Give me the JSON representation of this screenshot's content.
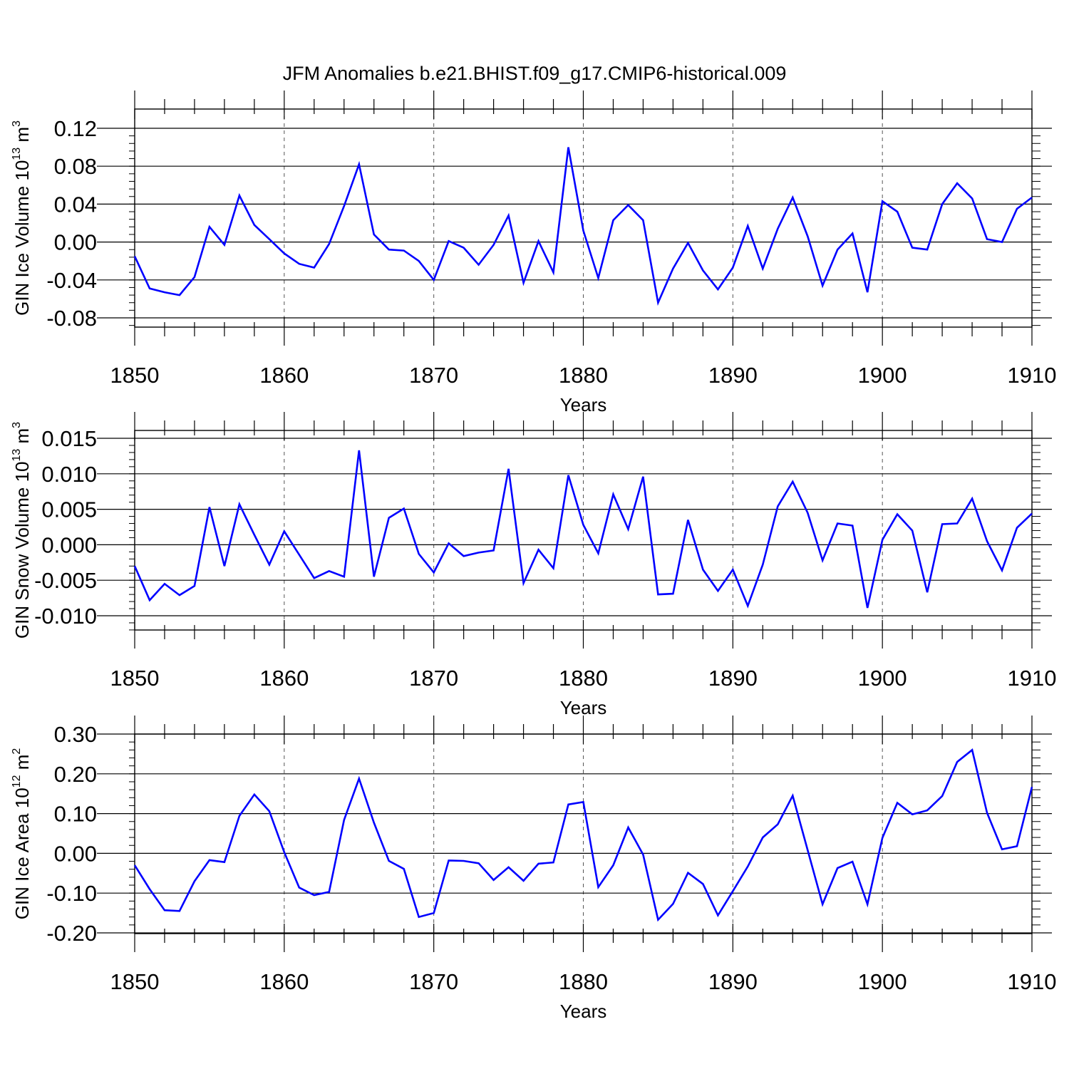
{
  "title": "JFM Anomalies b.e21.BHIST.f09_g17.CMIP6-historical.009",
  "colors": {
    "line": "#0000ff",
    "axis": "#000000",
    "grid": "#000000"
  },
  "chart_data": [
    {
      "type": "line",
      "title": "JFM Anomalies b.e21.BHIST.f09_g17.CMIP6-historical.009",
      "xlabel": "Years",
      "ylabel": "GIN Ice Volume 10",
      "ylabel_exponent": "13",
      "ylabel_unit": " m",
      "ylabel_unit_exponent": "3",
      "xlim": [
        1850,
        1910
      ],
      "ylim": [
        -0.09,
        0.13
      ],
      "xticks": [
        1850,
        1860,
        1870,
        1880,
        1890,
        1900,
        1910
      ],
      "yticks": [
        -0.08,
        -0.04,
        0.0,
        0.04,
        0.08,
        0.12
      ],
      "ytick_labels": [
        "-0.08",
        "-0.04",
        "0.00",
        "0.04",
        "0.08",
        "0.12"
      ],
      "grid": "vertical dashed at major x ticks",
      "series": [
        {
          "x": [
            1850,
            1851,
            1852,
            1853,
            1854,
            1855,
            1856,
            1857,
            1858,
            1859,
            1860,
            1861,
            1862,
            1863,
            1864,
            1865,
            1866,
            1867,
            1868,
            1869,
            1870,
            1871,
            1872,
            1873,
            1874,
            1875,
            1876,
            1877,
            1878,
            1879,
            1880,
            1881,
            1882,
            1883,
            1884,
            1885,
            1886,
            1887,
            1888,
            1889,
            1890,
            1891,
            1892,
            1893,
            1894,
            1895,
            1896,
            1897,
            1898,
            1899,
            1900,
            1901,
            1902,
            1903,
            1904,
            1905,
            1906,
            1907,
            1908,
            1909,
            1910
          ],
          "values": [
            -0.015,
            -0.049,
            -0.053,
            -0.056,
            -0.037,
            0.016,
            -0.003,
            0.049,
            0.018,
            0.003,
            -0.012,
            -0.023,
            -0.027,
            -0.002,
            0.038,
            0.082,
            0.008,
            -0.008,
            -0.009,
            -0.02,
            -0.04,
            0.001,
            -0.006,
            -0.024,
            -0.003,
            0.028,
            -0.043,
            0.001,
            -0.032,
            0.1,
            0.012,
            -0.038,
            0.023,
            0.039,
            0.023,
            -0.064,
            -0.028,
            -0.001,
            -0.03,
            -0.05,
            -0.027,
            0.017,
            -0.028,
            0.014,
            0.047,
            0.006,
            -0.046,
            -0.008,
            0.009,
            -0.053,
            0.043,
            0.032,
            -0.006,
            -0.008,
            0.04,
            0.062,
            0.046,
            0.003,
            0.0,
            0.035,
            0.047
          ]
        }
      ]
    },
    {
      "type": "line",
      "xlabel": "Years",
      "ylabel": "GIN Snow Volume 10",
      "ylabel_exponent": "13",
      "ylabel_unit": " m",
      "ylabel_unit_exponent": "3",
      "xlim": [
        1850,
        1910
      ],
      "ylim": [
        -0.012,
        0.016
      ],
      "xticks": [
        1850,
        1860,
        1870,
        1880,
        1890,
        1900,
        1910
      ],
      "yticks": [
        -0.01,
        -0.005,
        0.0,
        0.005,
        0.01,
        0.015
      ],
      "ytick_labels": [
        "-0.010",
        "-0.005",
        "0.000",
        "0.005",
        "0.010",
        "0.015"
      ],
      "grid": "vertical dashed at major x ticks",
      "series": [
        {
          "x": [
            1850,
            1851,
            1852,
            1853,
            1854,
            1855,
            1856,
            1857,
            1858,
            1859,
            1860,
            1861,
            1862,
            1863,
            1864,
            1865,
            1866,
            1867,
            1868,
            1869,
            1870,
            1871,
            1872,
            1873,
            1874,
            1875,
            1876,
            1877,
            1878,
            1879,
            1880,
            1881,
            1882,
            1883,
            1884,
            1885,
            1886,
            1887,
            1888,
            1889,
            1890,
            1891,
            1892,
            1893,
            1894,
            1895,
            1896,
            1897,
            1898,
            1899,
            1900,
            1901,
            1902,
            1903,
            1904,
            1905,
            1906,
            1907,
            1908,
            1909,
            1910
          ],
          "values": [
            -0.003,
            -0.0078,
            -0.0055,
            -0.0071,
            -0.0058,
            0.0053,
            -0.003,
            0.0057,
            0.0014,
            -0.0028,
            0.0019,
            -0.0014,
            -0.0047,
            -0.0037,
            -0.0045,
            0.0133,
            -0.0045,
            0.0038,
            0.0051,
            -0.0013,
            -0.0039,
            0.0002,
            -0.0016,
            -0.0011,
            -0.0008,
            0.0107,
            -0.0054,
            -0.0007,
            -0.0033,
            0.0098,
            0.0028,
            -0.0012,
            0.0071,
            0.0022,
            0.0096,
            -0.007,
            -0.0069,
            0.0035,
            -0.0035,
            -0.0065,
            -0.0035,
            -0.0086,
            -0.0028,
            0.0054,
            0.0089,
            0.0045,
            -0.0022,
            0.003,
            0.0027,
            -0.0089,
            0.0007,
            0.0043,
            0.002,
            -0.0067,
            0.0029,
            0.003,
            0.0065,
            0.0005,
            -0.0036,
            0.0024,
            0.0044
          ]
        }
      ]
    },
    {
      "type": "line",
      "xlabel": "Years",
      "ylabel": "GIN Ice Area 10",
      "ylabel_exponent": "12",
      "ylabel_unit": " m",
      "ylabel_unit_exponent": "2",
      "xlim": [
        1850,
        1910
      ],
      "ylim": [
        -0.2,
        0.3
      ],
      "xticks": [
        1850,
        1860,
        1870,
        1880,
        1890,
        1900,
        1910
      ],
      "yticks": [
        -0.2,
        -0.1,
        0.0,
        0.1,
        0.2,
        0.3
      ],
      "ytick_labels": [
        "-0.20",
        "-0.10",
        "0.00",
        "0.10",
        "0.20",
        "0.30"
      ],
      "grid": "vertical dashed at major x ticks",
      "series": [
        {
          "x": [
            1850,
            1851,
            1852,
            1853,
            1854,
            1855,
            1856,
            1857,
            1858,
            1859,
            1860,
            1861,
            1862,
            1863,
            1864,
            1865,
            1866,
            1867,
            1868,
            1869,
            1870,
            1871,
            1872,
            1873,
            1874,
            1875,
            1876,
            1877,
            1878,
            1879,
            1880,
            1881,
            1882,
            1883,
            1884,
            1885,
            1886,
            1887,
            1888,
            1889,
            1890,
            1891,
            1892,
            1893,
            1894,
            1895,
            1896,
            1897,
            1898,
            1899,
            1900,
            1901,
            1902,
            1903,
            1904,
            1905,
            1906,
            1907,
            1908,
            1909,
            1910
          ],
          "values": [
            -0.03,
            -0.09,
            -0.143,
            -0.145,
            -0.07,
            -0.017,
            -0.022,
            0.094,
            0.148,
            0.106,
            0.003,
            -0.086,
            -0.105,
            -0.097,
            0.084,
            0.188,
            0.077,
            -0.019,
            -0.039,
            -0.16,
            -0.15,
            -0.018,
            -0.019,
            -0.025,
            -0.067,
            -0.035,
            -0.069,
            -0.026,
            -0.023,
            0.123,
            0.129,
            -0.085,
            -0.03,
            0.065,
            -0.003,
            -0.167,
            -0.127,
            -0.049,
            -0.077,
            -0.156,
            -0.095,
            -0.033,
            0.04,
            0.073,
            0.145,
            0.008,
            -0.128,
            -0.037,
            -0.021,
            -0.128,
            0.039,
            0.127,
            0.098,
            0.108,
            0.144,
            0.23,
            0.26,
            0.102,
            0.01,
            0.018,
            0.167
          ]
        }
      ]
    }
  ]
}
